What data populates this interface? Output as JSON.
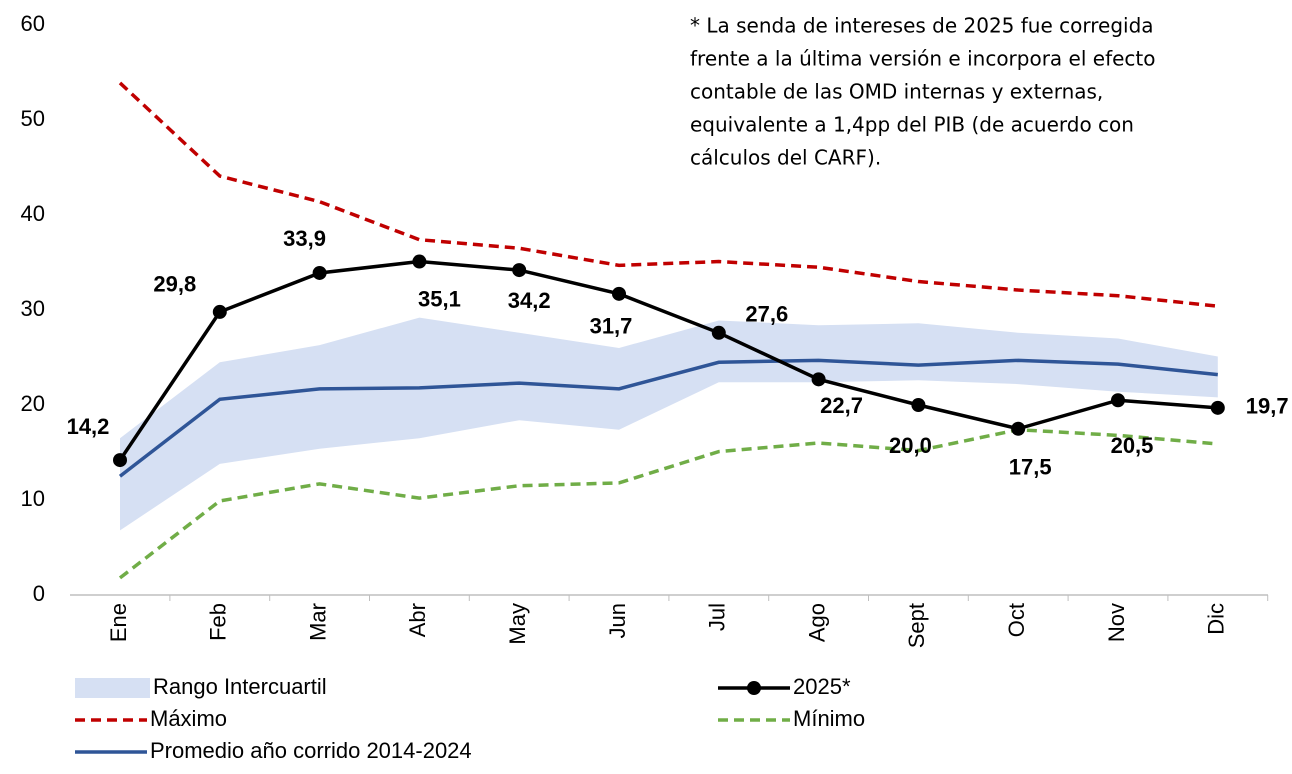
{
  "chart_data": {
    "type": "line",
    "annotation": [
      "* La senda de intereses de 2025 fue corregida",
      "frente a la última versión e incorpora el efecto",
      "contable de las OMD internas y externas,",
      "equivalente a 1,4pp del PIB (de acuerdo con",
      "cálculos del CARF)."
    ],
    "categories": [
      "Ene",
      "Feb",
      "Mar",
      "Abr",
      "May",
      "Jun",
      "Jul",
      "Ago",
      "Sept",
      "Oct",
      "Nov",
      "Dic"
    ],
    "ylim": [
      0,
      60
    ],
    "yticks": [
      0,
      10,
      20,
      30,
      40,
      50,
      60
    ],
    "grid": false,
    "band": {
      "name": "Rango Intercuartil",
      "color": "#d6e0f3",
      "lower": [
        6.8,
        13.8,
        15.4,
        16.5,
        18.4,
        17.4,
        22.4,
        22.4,
        22.6,
        22.2,
        21.4,
        20.8
      ],
      "upper": [
        16.5,
        24.5,
        26.3,
        29.2,
        27.6,
        26.0,
        28.9,
        28.4,
        28.6,
        27.6,
        27.0,
        25.1
      ]
    },
    "series": [
      {
        "name": "2025*",
        "color": "#000000",
        "style": "solid-marker",
        "values": [
          14.2,
          29.8,
          33.9,
          35.1,
          34.2,
          31.7,
          27.6,
          22.7,
          20.0,
          17.5,
          20.5,
          19.7
        ],
        "value_labels": [
          "14,2",
          "29,8",
          "33,9",
          "35,1",
          "34,2",
          "31,7",
          "27,6",
          "22,7",
          "20,0",
          "17,5",
          "20,5",
          "19,7"
        ]
      },
      {
        "name": "Máximo",
        "color": "#c00000",
        "style": "dashed",
        "values": [
          53.9,
          44.1,
          41.4,
          37.4,
          36.5,
          34.7,
          35.1,
          34.5,
          33.0,
          32.1,
          31.5,
          30.4
        ]
      },
      {
        "name": "Mínimo",
        "color": "#70ad47",
        "style": "dashed",
        "values": [
          1.8,
          9.9,
          11.7,
          10.2,
          11.5,
          11.8,
          15.1,
          16.0,
          15.2,
          17.4,
          16.8,
          15.9
        ]
      },
      {
        "name": "Promedio año corrido 2014-2024",
        "color": "#2f5597",
        "style": "solid",
        "values": [
          12.5,
          20.6,
          21.7,
          21.8,
          22.3,
          21.7,
          24.5,
          24.7,
          24.2,
          24.7,
          24.3,
          23.2
        ]
      }
    ]
  }
}
